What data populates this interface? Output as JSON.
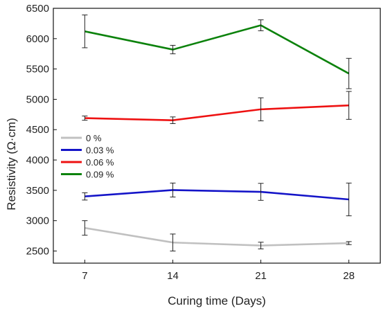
{
  "chart_data": {
    "type": "line",
    "xlabel": "Curing time (Days)",
    "ylabel": "Resistivity (Ω·cm)",
    "x": [
      7,
      14,
      21,
      28
    ],
    "xlim": [
      4.5,
      30.5
    ],
    "ylim": [
      2300,
      6500
    ],
    "xticks": [
      "7",
      "14",
      "21",
      "28"
    ],
    "yticks": [
      "2500",
      "3000",
      "3500",
      "4000",
      "4500",
      "5000",
      "5500",
      "6000",
      "6500"
    ],
    "grid": false,
    "legend_position": "left-middle",
    "series": [
      {
        "name": "0 %",
        "color": "#c0c0c0",
        "values": [
          2880,
          2640,
          2590,
          2630
        ],
        "errors": [
          120,
          140,
          55,
          25
        ]
      },
      {
        "name": "0.03 %",
        "color": "#1414c8",
        "values": [
          3400,
          3505,
          3475,
          3350
        ],
        "errors": [
          60,
          115,
          140,
          270
        ]
      },
      {
        "name": "0.06 %",
        "color": "#ee1111",
        "values": [
          4690,
          4655,
          4835,
          4900
        ],
        "errors": [
          35,
          55,
          190,
          230
        ]
      },
      {
        "name": "0.09 %",
        "color": "#0c820c",
        "values": [
          6120,
          5820,
          6220,
          5425
        ],
        "errors": [
          270,
          70,
          90,
          250
        ]
      }
    ]
  }
}
